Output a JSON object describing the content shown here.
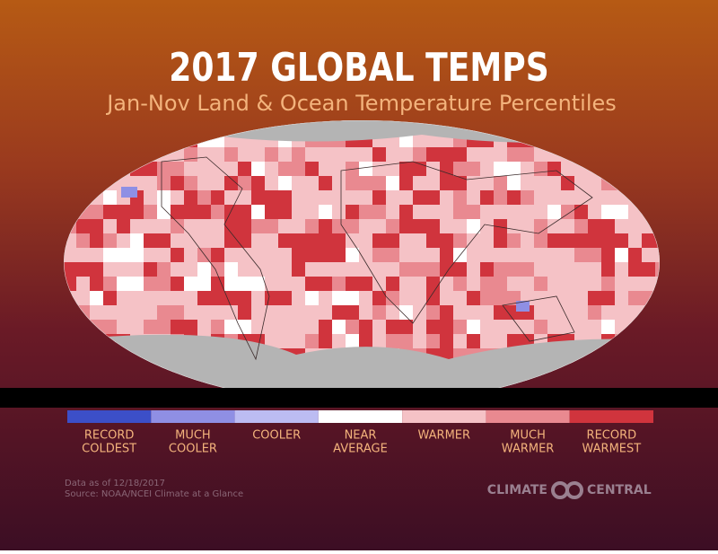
{
  "header": {
    "title": "2017 GLOBAL TEMPS",
    "subtitle": "Jan-Nov Land & Ocean Temperature Percentiles"
  },
  "legend": {
    "items": [
      {
        "lines": [
          "RECORD",
          "COLDEST"
        ],
        "color": "#3c4fc8"
      },
      {
        "lines": [
          "MUCH",
          "COOLER"
        ],
        "color": "#8f8fe4"
      },
      {
        "lines": [
          "COOLER"
        ],
        "color": "#bcbcf2"
      },
      {
        "lines": [
          "NEAR",
          "AVERAGE"
        ],
        "color": "#ffffff"
      },
      {
        "lines": [
          "WARMER"
        ],
        "color": "#f5c2c6"
      },
      {
        "lines": [
          "MUCH",
          "WARMER"
        ],
        "color": "#e98990"
      },
      {
        "lines": [
          "RECORD",
          "WARMEST"
        ],
        "color": "#d0343d"
      }
    ]
  },
  "footer": {
    "notes": [
      "Data as of 12/18/2017",
      "Source: NOAA/NCEI Climate at a Glance"
    ],
    "logo": [
      "CLIMATE",
      "CENTRAL"
    ]
  }
}
